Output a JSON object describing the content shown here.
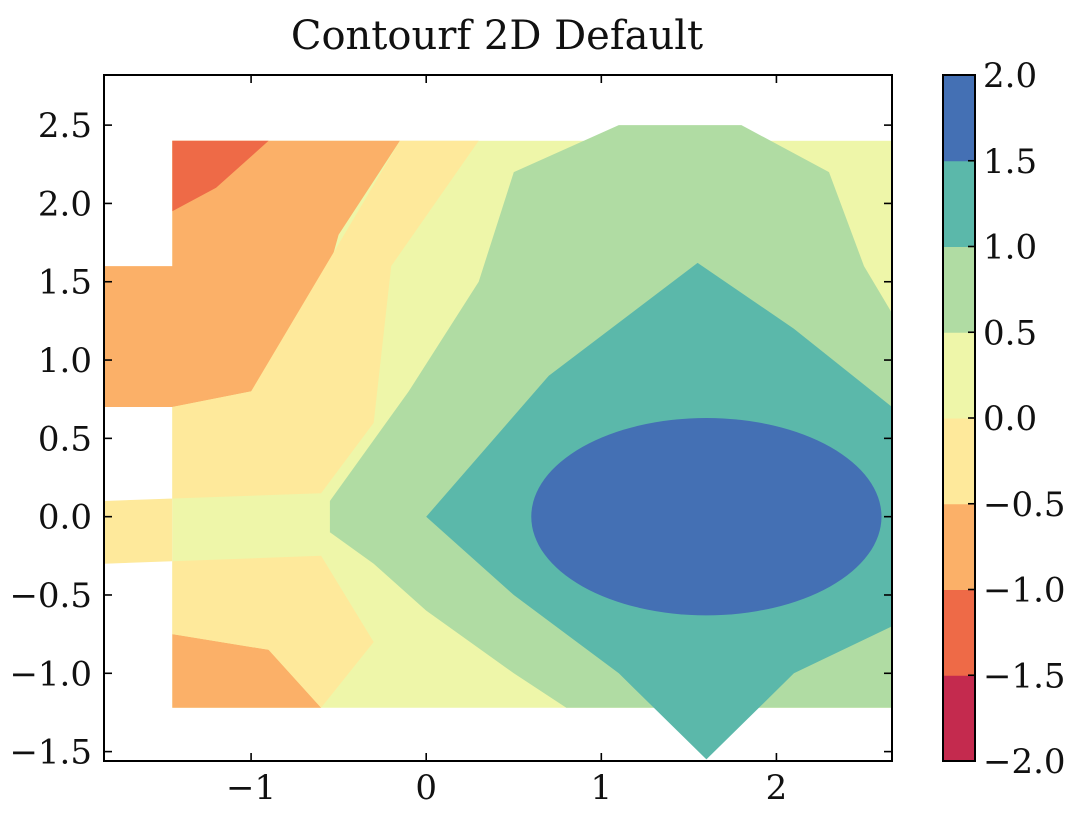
{
  "chart_data": {
    "type": "heatmap",
    "title": "Contourf 2D Default",
    "xlabel": "",
    "ylabel": "",
    "xlim": [
      -1.84,
      2.66
    ],
    "ylim": [
      -1.56,
      2.82
    ],
    "data_extent": {
      "x": [
        -1.45,
        2.66
      ],
      "y": [
        -1.22,
        2.4
      ]
    },
    "x_ticks": [
      -1,
      0,
      1,
      2
    ],
    "x_tick_labels": [
      "−1",
      "0",
      "1",
      "2"
    ],
    "y_ticks": [
      -1.5,
      -1.0,
      -0.5,
      0.0,
      0.5,
      1.0,
      1.5,
      2.0,
      2.5
    ],
    "y_tick_labels": [
      "−1.5",
      "−1.0",
      "−0.5",
      "0.0",
      "0.5",
      "1.0",
      "1.5",
      "2.0",
      "2.5"
    ],
    "colorbar": {
      "levels": [
        -2.0,
        -1.5,
        -1.0,
        -0.5,
        0.0,
        0.5,
        1.0,
        1.5,
        2.0
      ],
      "level_labels": [
        "−2.0",
        "−1.5",
        "−1.0",
        "−0.5",
        "0.0",
        "0.5",
        "1.0",
        "1.5",
        "2.0"
      ],
      "band_colors": [
        "#c42a4e",
        "#ee6a47",
        "#fbb068",
        "#fee99b",
        "#eef6a9",
        "#b0dca3",
        "#5bb8aa",
        "#4470b4"
      ]
    },
    "regions": [
      {
        "level_range": [
          -1.0,
          -0.5
        ],
        "description_of_value": "left region around x = -1.45 to -0.6"
      },
      {
        "level_range": [
          -1.5,
          -1.0
        ],
        "description_of_value": "upper-left corner near x = -1.45, y = 2.2"
      },
      {
        "level_range": [
          1.5,
          2.0
        ],
        "description_of_value": "center ellipse around x = 1.6, y = 0"
      },
      {
        "level_range": [
          1.0,
          1.5
        ],
        "description_of_value": "diamond around x = 1.6, y = 0"
      }
    ],
    "grid": false,
    "legend": "colorbar-right"
  }
}
